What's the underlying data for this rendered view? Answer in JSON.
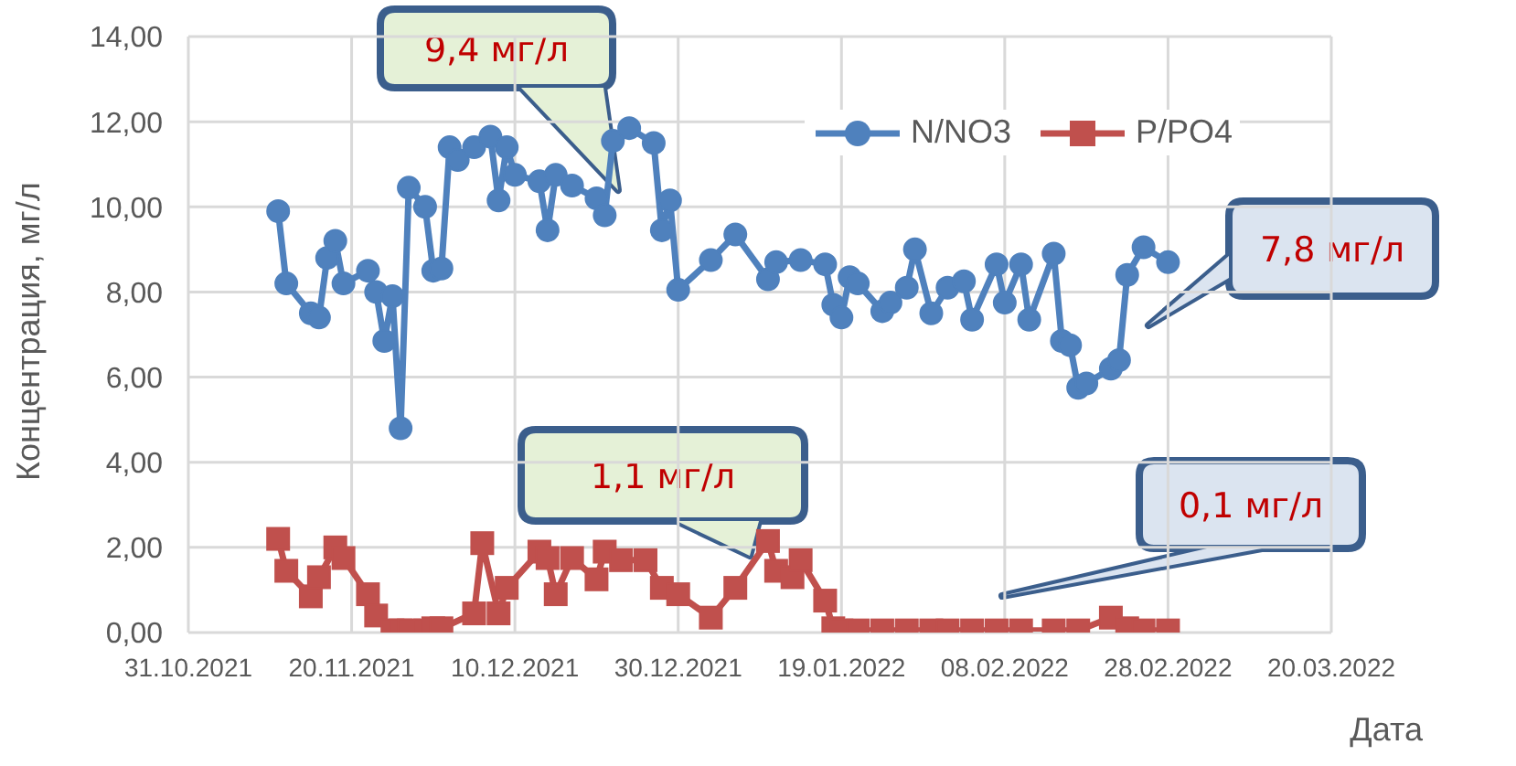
{
  "chart_data": {
    "type": "line",
    "xlabel": "Дата",
    "ylabel": "Концентрация, мг/л",
    "xlim": [
      "2021-10-31",
      "2022-03-20"
    ],
    "xticks": [
      {
        "value": "2021-10-31",
        "label": "31.10.2021"
      },
      {
        "value": "2021-11-20",
        "label": "20.11.2021"
      },
      {
        "value": "2021-12-10",
        "label": "10.12.2021"
      },
      {
        "value": "2021-12-30",
        "label": "30.12.2021"
      },
      {
        "value": "2022-01-19",
        "label": "19.01.2022"
      },
      {
        "value": "2022-02-08",
        "label": "08.02.2022"
      },
      {
        "value": "2022-02-28",
        "label": "28.02.2022"
      },
      {
        "value": "2022-03-20",
        "label": "20.03.2022"
      }
    ],
    "ylim": [
      0,
      14
    ],
    "yticks": [
      {
        "value": 0,
        "label": "0,00"
      },
      {
        "value": 2,
        "label": "2,00"
      },
      {
        "value": 4,
        "label": "4,00"
      },
      {
        "value": 6,
        "label": "6,00"
      },
      {
        "value": 8,
        "label": "8,00"
      },
      {
        "value": 10,
        "label": "10,00"
      },
      {
        "value": 12,
        "label": "12,00"
      },
      {
        "value": 14,
        "label": "14,00"
      }
    ],
    "grid": true,
    "legend": "top right",
    "line_style": "solid",
    "series": [
      {
        "name": "N/NO3",
        "color": "#4f81bd",
        "marker": "circle",
        "x": [
          "2021-11-11",
          "2021-11-12",
          "2021-11-15",
          "2021-11-16",
          "2021-11-17",
          "2021-11-18",
          "2021-11-19",
          "2021-11-22",
          "2021-11-23",
          "2021-11-24",
          "2021-11-25",
          "2021-11-26",
          "2021-11-27",
          "2021-11-29",
          "2021-11-30",
          "2021-12-01",
          "2021-12-02",
          "2021-12-03",
          "2021-12-05",
          "2021-12-07",
          "2021-12-08",
          "2021-12-09",
          "2021-12-10",
          "2021-12-13",
          "2021-12-14",
          "2021-12-15",
          "2021-12-17",
          "2021-12-20",
          "2021-12-21",
          "2021-12-22",
          "2021-12-24",
          "2021-12-27",
          "2021-12-28",
          "2021-12-29",
          "2021-12-30",
          "2022-01-03",
          "2022-01-06",
          "2022-01-10",
          "2022-01-11",
          "2022-01-14",
          "2022-01-17",
          "2022-01-18",
          "2022-01-19",
          "2022-01-20",
          "2022-01-21",
          "2022-01-24",
          "2022-01-25",
          "2022-01-27",
          "2022-01-28",
          "2022-01-30",
          "2022-02-01",
          "2022-02-03",
          "2022-02-04",
          "2022-02-07",
          "2022-02-08",
          "2022-02-10",
          "2022-02-11",
          "2022-02-14",
          "2022-02-15",
          "2022-02-16",
          "2022-02-17",
          "2022-02-18",
          "2022-02-21",
          "2022-02-22",
          "2022-02-23",
          "2022-02-25",
          "2022-02-28"
        ],
        "values": [
          9.9,
          8.2,
          7.5,
          7.4,
          8.8,
          9.2,
          8.2,
          8.5,
          8.0,
          6.85,
          7.9,
          4.8,
          10.45,
          10.0,
          8.5,
          8.55,
          11.4,
          11.1,
          11.4,
          11.65,
          10.15,
          11.4,
          10.75,
          10.6,
          9.45,
          10.75,
          10.5,
          10.2,
          9.8,
          11.55,
          11.85,
          11.5,
          9.45,
          10.15,
          8.05,
          8.75,
          9.35,
          8.3,
          8.7,
          8.75,
          8.65,
          7.7,
          7.4,
          8.35,
          8.2,
          7.55,
          7.75,
          8.1,
          9.0,
          7.5,
          8.1,
          8.25,
          7.35,
          8.65,
          7.75,
          8.65,
          7.35,
          8.9,
          6.85,
          6.75,
          5.75,
          5.85,
          6.2,
          6.4,
          8.4,
          9.05,
          8.7
        ]
      },
      {
        "name": "P/PO4",
        "color": "#c0504d",
        "marker": "square",
        "x": [
          "2021-11-11",
          "2021-11-12",
          "2021-11-15",
          "2021-11-16",
          "2021-11-18",
          "2021-11-19",
          "2021-11-22",
          "2021-11-23",
          "2021-11-25",
          "2021-11-26",
          "2021-11-27",
          "2021-11-29",
          "2021-11-30",
          "2021-12-01",
          "2021-12-05",
          "2021-12-06",
          "2021-12-08",
          "2021-12-09",
          "2021-12-13",
          "2021-12-14",
          "2021-12-15",
          "2021-12-17",
          "2021-12-20",
          "2021-12-21",
          "2021-12-23",
          "2021-12-26",
          "2021-12-28",
          "2021-12-30",
          "2022-01-03",
          "2022-01-06",
          "2022-01-10",
          "2022-01-11",
          "2022-01-13",
          "2022-01-14",
          "2022-01-17",
          "2022-01-18",
          "2022-01-19",
          "2022-01-21",
          "2022-01-24",
          "2022-01-27",
          "2022-01-30",
          "2022-02-01",
          "2022-02-04",
          "2022-02-07",
          "2022-02-10",
          "2022-02-14",
          "2022-02-17",
          "2022-02-21",
          "2022-02-23",
          "2022-02-25",
          "2022-02-28"
        ],
        "values": [
          2.2,
          1.45,
          0.85,
          1.3,
          2.0,
          1.75,
          0.9,
          0.4,
          0.05,
          0.05,
          0.05,
          0.05,
          0.1,
          0.1,
          0.45,
          2.1,
          0.45,
          1.05,
          1.9,
          1.75,
          0.9,
          1.75,
          1.25,
          1.9,
          1.7,
          1.7,
          1.05,
          0.9,
          0.35,
          1.05,
          2.15,
          1.45,
          1.3,
          1.7,
          0.75,
          0.1,
          0.05,
          0.05,
          0.05,
          0.05,
          0.05,
          0.05,
          0.05,
          0.05,
          0.05,
          0.05,
          0.05,
          0.35,
          0.1,
          0.05,
          0.05
        ]
      }
    ],
    "annotations": [
      "9,4 мг/л",
      "1,1 мг/л",
      "7,8 мг/л",
      "0,1 мг/л"
    ]
  }
}
